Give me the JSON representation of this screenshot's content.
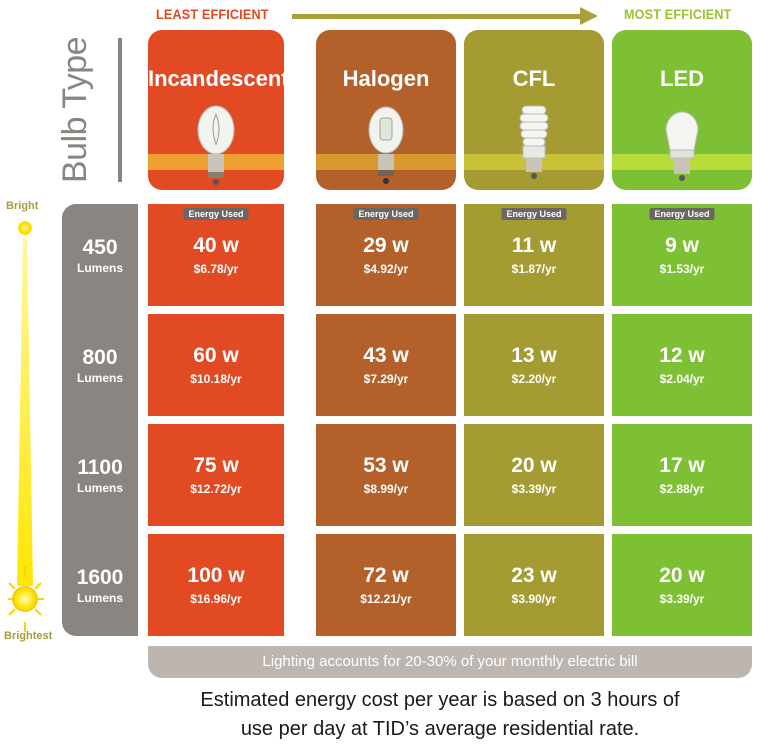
{
  "header": {
    "least_efficient": "LEAST EFFICIENT",
    "most_efficient": "MOST EFFICIENT",
    "bulb_type_label": "Bulb Type"
  },
  "scale": {
    "top_label": "Bright",
    "bottom_label": "Brightest"
  },
  "energy_tag": "Energy Used",
  "bulbs": [
    {
      "name": "Incandescent",
      "color": "#e24a24",
      "band_color": "#f0a030",
      "icon": "incandescent-bulb-icon"
    },
    {
      "name": "Halogen",
      "color": "#b3602a",
      "band_color": "#d89a30",
      "icon": "halogen-bulb-icon"
    },
    {
      "name": "CFL",
      "color": "#a49b32",
      "band_color": "#c9c236",
      "icon": "cfl-bulb-icon"
    },
    {
      "name": "LED",
      "color": "#7ec034",
      "band_color": "#b7dc3c",
      "icon": "led-bulb-icon"
    }
  ],
  "rows": [
    {
      "lumens": "450",
      "unit": "Lumens",
      "cells": [
        {
          "watts": "40 w",
          "cost": "$6.78/yr"
        },
        {
          "watts": "29 w",
          "cost": "$4.92/yr"
        },
        {
          "watts": "11 w",
          "cost": "$1.87/yr"
        },
        {
          "watts": "9 w",
          "cost": "$1.53/yr"
        }
      ]
    },
    {
      "lumens": "800",
      "unit": "Lumens",
      "cells": [
        {
          "watts": "60 w",
          "cost": "$10.18/yr"
        },
        {
          "watts": "43 w",
          "cost": "$7.29/yr"
        },
        {
          "watts": "13 w",
          "cost": "$2.20/yr"
        },
        {
          "watts": "12 w",
          "cost": "$2.04/yr"
        }
      ]
    },
    {
      "lumens": "1100",
      "unit": "Lumens",
      "cells": [
        {
          "watts": "75 w",
          "cost": "$12.72/yr"
        },
        {
          "watts": "53 w",
          "cost": "$8.99/yr"
        },
        {
          "watts": "20 w",
          "cost": "$3.39/yr"
        },
        {
          "watts": "17 w",
          "cost": "$2.88/yr"
        }
      ]
    },
    {
      "lumens": "1600",
      "unit": "Lumens",
      "cells": [
        {
          "watts": "100 w",
          "cost": "$16.96/yr"
        },
        {
          "watts": "72 w",
          "cost": "$12.21/yr"
        },
        {
          "watts": "23 w",
          "cost": "$3.90/yr"
        },
        {
          "watts": "20 w",
          "cost": "$3.39/yr"
        }
      ]
    }
  ],
  "footer": {
    "bar_text": "Lighting accounts for 20-30% of your monthly electric bill",
    "note_line1": "Estimated energy cost per year is based on 3 hours of",
    "note_line2": "use per day at TID’s average residential rate."
  }
}
